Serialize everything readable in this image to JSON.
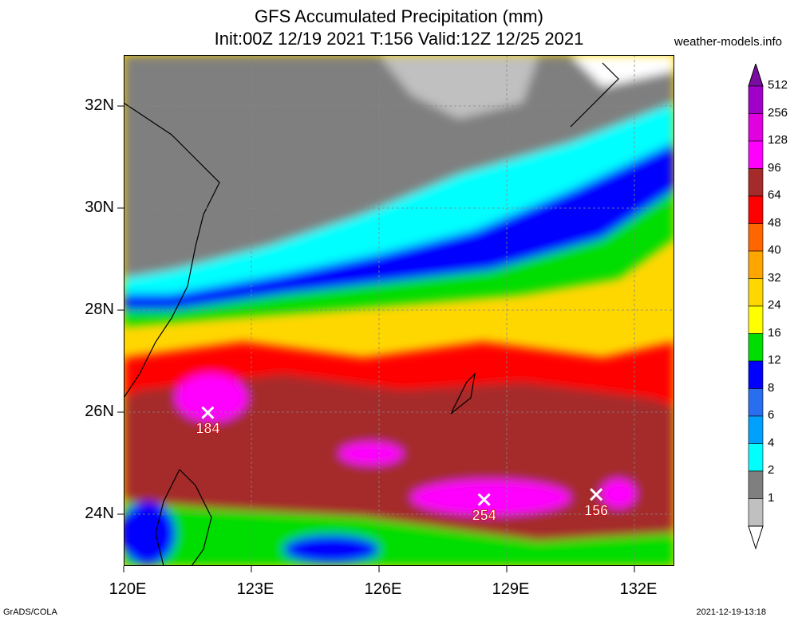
{
  "title": {
    "line1": "GFS Accumulated Precipitation (mm)",
    "line2": "Init:00Z 12/19 2021 T:156 Valid:12Z 12/25 2021"
  },
  "site": "weather-models.info",
  "axes": {
    "lat_labels": [
      "32N",
      "30N",
      "28N",
      "26N",
      "24N"
    ],
    "lon_labels": [
      "120E",
      "123E",
      "126E",
      "129E",
      "132E"
    ]
  },
  "colorbar": {
    "levels": [
      "512",
      "256",
      "128",
      "96",
      "64",
      "48",
      "40",
      "32",
      "24",
      "16",
      "12",
      "8",
      "6",
      "4",
      "2",
      "1"
    ],
    "colors": [
      "#7b0ca0",
      "#a000c8",
      "#e000e0",
      "#ff00ff",
      "#a52a2a",
      "#ff0000",
      "#ff6600",
      "#ffa500",
      "#ffd700",
      "#ffff00",
      "#00dd00",
      "#0000ff",
      "#2a6ef0",
      "#00a0ff",
      "#00ffff",
      "#7f7f7f",
      "#c0c0c0",
      "#ffffff"
    ]
  },
  "maxima": [
    {
      "label": "184",
      "lat": 26.0,
      "lon": 122.0
    },
    {
      "label": "254",
      "lat": 24.3,
      "lon": 128.9
    },
    {
      "label": "156",
      "lat": 24.4,
      "lon": 131.7
    }
  ],
  "footer": {
    "left": "GrADS/COLA",
    "right": "2021-12-19-13:18"
  }
}
